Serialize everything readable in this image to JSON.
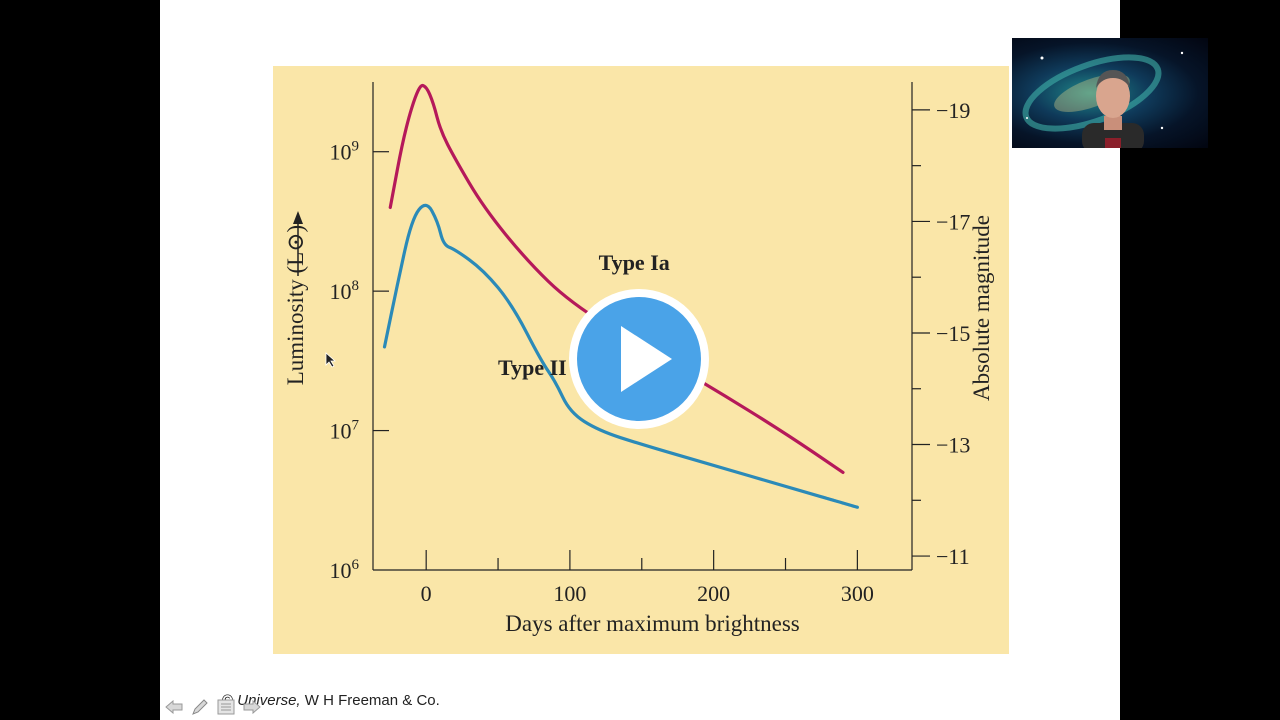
{
  "credit": {
    "symbol": "©",
    "title": "Universe,",
    "publisher": "W H Freeman & Co."
  },
  "controls": [
    {
      "name": "previous-slide",
      "icon": "arrow-left-icon"
    },
    {
      "name": "pen",
      "icon": "pencil-icon"
    },
    {
      "name": "menu",
      "icon": "menu-icon"
    },
    {
      "name": "next-slide",
      "icon": "arrow-right-icon"
    }
  ],
  "webcam": {
    "icon": "presenter-video-icon"
  },
  "play_button": {
    "icon": "play-icon",
    "color": "#4aa3e8"
  },
  "chart_data": {
    "type": "line",
    "xlabel": "Days after maximum brightness",
    "ylabel": "Luminosity (L⊙)",
    "y2label": "Absolute magnitude",
    "xlim": [
      -37,
      338
    ],
    "ylim_log10": [
      6,
      9.5
    ],
    "x_ticks": [
      0,
      100,
      200,
      300
    ],
    "y_ticks": [
      "10^9",
      "10^8",
      "10^7",
      "10^6"
    ],
    "y2_ticks": [
      -19,
      -17,
      -15,
      -13,
      -11
    ],
    "colors": {
      "type_ia": "#b5195a",
      "type_ii": "#2b8ab8",
      "axis": "#222222",
      "panel": "#fae6a8"
    },
    "annotations": [
      {
        "text": "Type Ia",
        "x": 120,
        "log10_y": 8.15
      },
      {
        "text": "Type II",
        "x": 50,
        "log10_y": 7.4
      }
    ],
    "series": [
      {
        "name": "Type Ia",
        "x": [
          -25,
          -15,
          -5,
          0,
          5,
          10,
          20,
          40,
          70,
          100,
          150,
          200,
          250,
          290
        ],
        "log10_y": [
          8.6,
          9.15,
          9.48,
          9.47,
          9.35,
          9.15,
          8.95,
          8.6,
          8.22,
          7.92,
          7.6,
          7.3,
          6.98,
          6.7
        ]
      },
      {
        "name": "Type II",
        "x": [
          -29,
          -20,
          -10,
          0,
          8,
          12,
          20,
          40,
          60,
          80,
          90,
          100,
          120,
          150,
          200,
          250,
          300
        ],
        "log10_y": [
          7.6,
          8.05,
          8.52,
          8.65,
          8.5,
          8.33,
          8.3,
          8.15,
          7.9,
          7.5,
          7.35,
          7.13,
          7.0,
          6.9,
          6.75,
          6.6,
          6.45
        ]
      }
    ]
  }
}
